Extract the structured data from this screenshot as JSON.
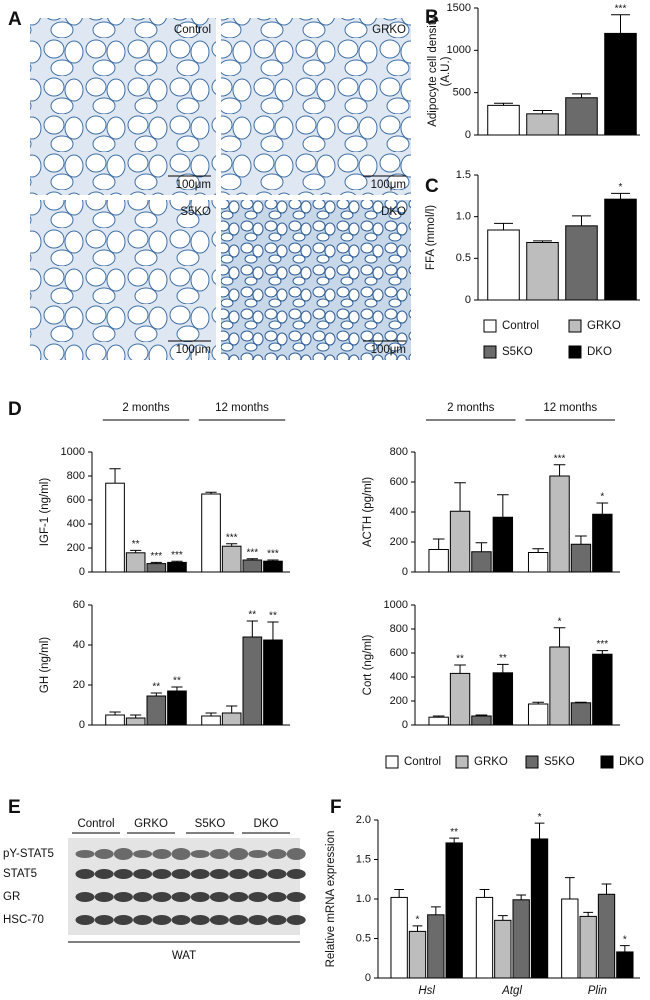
{
  "panels": {
    "a": "A",
    "b": "B",
    "c": "C",
    "d": "D",
    "e": "E",
    "f": "F"
  },
  "micrographs": [
    {
      "label": "Control",
      "scale": "100μm"
    },
    {
      "label": "GRKO",
      "scale": "100μm"
    },
    {
      "label": "S5KO",
      "scale": "100μm"
    },
    {
      "label": "DKO",
      "scale": "100μm"
    }
  ],
  "legends": [
    {
      "entries": [
        {
          "name": "Control",
          "color": "#ffffff"
        },
        {
          "name": "GRKO",
          "color": "#bdbdbd"
        },
        {
          "name": "S5KO",
          "color": "#6b6b6b"
        },
        {
          "name": "DKO",
          "color": "#000000"
        }
      ]
    },
    {
      "entries": [
        {
          "name": "Control",
          "color": "#ffffff"
        },
        {
          "name": "GRKO",
          "color": "#bdbdbd"
        },
        {
          "name": "S5KO",
          "color": "#6b6b6b"
        },
        {
          "name": "DKO",
          "color": "#000000"
        }
      ]
    }
  ],
  "western": {
    "groups": [
      "Control",
      "GRKO",
      "S5KO",
      "DKO"
    ],
    "rows": [
      "pY-STAT5",
      "STAT5",
      "GR",
      "HSC-70"
    ],
    "tissue": "WAT"
  },
  "chart_data": [
    {
      "type": "bar",
      "ylabel": [
        "Adipocyte cell density",
        "(A.U.)"
      ],
      "categories": [
        null,
        null,
        null,
        null
      ],
      "values": [
        350,
        250,
        440,
        1200
      ],
      "errors": [
        25,
        40,
        45,
        220
      ],
      "significance": [
        null,
        null,
        null,
        "***"
      ],
      "colors": [
        "#ffffff",
        "#bdbdbd",
        "#6b6b6b",
        "#000000"
      ],
      "ylim": [
        0,
        1500
      ],
      "yticks": [
        0,
        500,
        1000,
        1500
      ]
    },
    {
      "type": "bar",
      "ylabel": "FFA (mmol/l)",
      "categories": [
        null,
        null,
        null,
        null
      ],
      "values": [
        0.84,
        0.69,
        0.89,
        1.21
      ],
      "errors": [
        0.08,
        0.02,
        0.12,
        0.07
      ],
      "significance": [
        null,
        null,
        null,
        "*"
      ],
      "colors": [
        "#ffffff",
        "#bdbdbd",
        "#6b6b6b",
        "#000000"
      ],
      "ylim": [
        0,
        1.5
      ],
      "yticks": [
        0,
        0.5,
        {
          "value": 1,
          "label": "1.0"
        },
        1.5
      ]
    },
    {
      "type": "grouped_bar",
      "ylabel": "IGF-1 (ng/ml)",
      "categories": [
        "2 months",
        "12 months"
      ],
      "ylim": [
        0,
        1000
      ],
      "yticks": [
        0,
        200,
        400,
        600,
        800,
        1000
      ],
      "series": [
        {
          "color": "#ffffff",
          "values": [
            740,
            650
          ],
          "errors": [
            120,
            15
          ],
          "significance": [
            null,
            null
          ]
        },
        {
          "color": "#bdbdbd",
          "values": [
            160,
            215
          ],
          "errors": [
            20,
            20
          ],
          "significance": [
            "**",
            "***"
          ]
        },
        {
          "color": "#6b6b6b",
          "values": [
            70,
            100
          ],
          "errors": [
            10,
            10
          ],
          "significance": [
            "***",
            "***"
          ]
        },
        {
          "color": "#000000",
          "values": [
            80,
            90
          ],
          "errors": [
            10,
            10
          ],
          "significance": [
            "***",
            "***"
          ]
        }
      ]
    },
    {
      "type": "grouped_bar",
      "ylabel": "ACTH (pg/ml)",
      "categories": [
        "2 months",
        "12 months"
      ],
      "ylim": [
        0,
        800
      ],
      "yticks": [
        0,
        200,
        400,
        600,
        800
      ],
      "series": [
        {
          "color": "#ffffff",
          "values": [
            150,
            130
          ],
          "errors": [
            70,
            25
          ],
          "significance": [
            null,
            null
          ]
        },
        {
          "color": "#bdbdbd",
          "values": [
            405,
            640
          ],
          "errors": [
            190,
            75
          ],
          "significance": [
            null,
            "***"
          ]
        },
        {
          "color": "#6b6b6b",
          "values": [
            135,
            185
          ],
          "errors": [
            60,
            55
          ],
          "significance": [
            null,
            null
          ]
        },
        {
          "color": "#000000",
          "values": [
            365,
            385
          ],
          "errors": [
            150,
            75
          ],
          "significance": [
            null,
            "*"
          ]
        }
      ]
    },
    {
      "type": "grouped_bar",
      "ylabel": "GH (ng/ml)",
      "categories": [
        null,
        null
      ],
      "ylim": [
        0,
        60
      ],
      "yticks": [
        0,
        20,
        40,
        60
      ],
      "series": [
        {
          "color": "#ffffff",
          "values": [
            5,
            4.5
          ],
          "errors": [
            1.5,
            1.5
          ],
          "significance": [
            null,
            null
          ]
        },
        {
          "color": "#bdbdbd",
          "values": [
            3.5,
            6
          ],
          "errors": [
            1.5,
            3.5
          ],
          "significance": [
            null,
            null
          ]
        },
        {
          "color": "#6b6b6b",
          "values": [
            14.5,
            44
          ],
          "errors": [
            1.5,
            8
          ],
          "significance": [
            "**",
            "**"
          ]
        },
        {
          "color": "#000000",
          "values": [
            17,
            42.5
          ],
          "errors": [
            2,
            9
          ],
          "significance": [
            "**",
            "**"
          ]
        }
      ]
    },
    {
      "type": "grouped_bar",
      "ylabel": "Cort (ng/ml)",
      "categories": [
        null,
        null
      ],
      "ylim": [
        0,
        1000
      ],
      "yticks": [
        0,
        200,
        400,
        600,
        800,
        1000
      ],
      "series": [
        {
          "color": "#ffffff",
          "values": [
            65,
            175
          ],
          "errors": [
            10,
            15
          ],
          "significance": [
            null,
            null
          ]
        },
        {
          "color": "#bdbdbd",
          "values": [
            430,
            650
          ],
          "errors": [
            70,
            160
          ],
          "significance": [
            "**",
            "*"
          ]
        },
        {
          "color": "#6b6b6b",
          "values": [
            75,
            185
          ],
          "errors": [
            8,
            5
          ],
          "significance": [
            null,
            null
          ]
        },
        {
          "color": "#000000",
          "values": [
            435,
            590
          ],
          "errors": [
            70,
            30
          ],
          "significance": [
            "**",
            "***"
          ]
        }
      ]
    },
    {
      "type": "grouped_bar",
      "ylabel": "Relative mRNA expression",
      "categories": [
        "Hsl",
        "Atgl",
        "Plin"
      ],
      "ylim": [
        0,
        2
      ],
      "yticks": [
        0,
        0.5,
        {
          "value": 1,
          "label": "1.0"
        },
        1.5,
        {
          "value": 2,
          "label": "2.0"
        }
      ],
      "series": [
        {
          "color": "#ffffff",
          "values": [
            1.02,
            1.02,
            1.0
          ],
          "errors": [
            0.1,
            0.1,
            0.27
          ],
          "significance": [
            null,
            null,
            null
          ]
        },
        {
          "color": "#bdbdbd",
          "values": [
            0.59,
            0.73,
            0.78
          ],
          "errors": [
            0.07,
            0.06,
            0.05
          ],
          "significance": [
            "*",
            null,
            null
          ]
        },
        {
          "color": "#6b6b6b",
          "values": [
            0.8,
            0.99,
            1.06
          ],
          "errors": [
            0.1,
            0.06,
            0.13
          ],
          "significance": [
            null,
            null,
            null
          ]
        },
        {
          "color": "#000000",
          "values": [
            1.71,
            1.76,
            0.33
          ],
          "errors": [
            0.06,
            0.2,
            0.08
          ],
          "significance": [
            "**",
            "*",
            "*"
          ]
        }
      ]
    }
  ]
}
